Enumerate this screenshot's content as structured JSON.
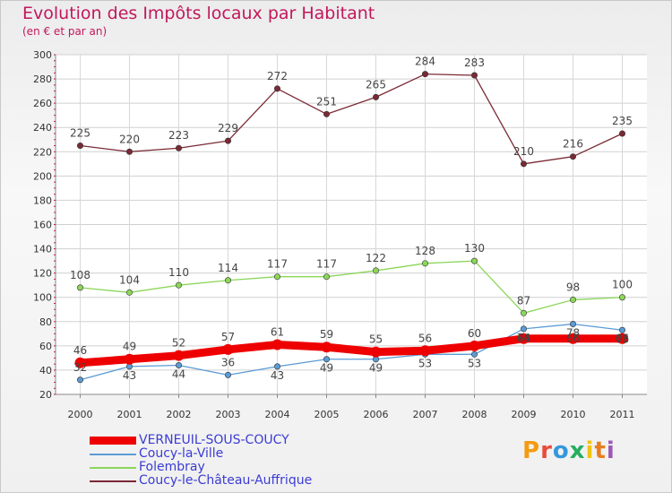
{
  "title": "Evolution des Impôts locaux par Habitant",
  "subtitle": "(en € et par an)",
  "logo": {
    "text": "Proxiti",
    "letters": [
      "P",
      "r",
      "o",
      "x",
      "i",
      "t",
      "i"
    ],
    "colors": [
      "#f39c12",
      "#e74c3c",
      "#3498db",
      "#27ae60",
      "#f1c40f",
      "#e67e22",
      "#9b59b6"
    ]
  },
  "chart_data": {
    "type": "line",
    "x": [
      "2000",
      "2001",
      "2002",
      "2003",
      "2004",
      "2005",
      "2006",
      "2007",
      "2008",
      "2009",
      "2010",
      "2011"
    ],
    "ylim": [
      20,
      300
    ],
    "yticks": [
      20,
      40,
      60,
      80,
      100,
      120,
      140,
      160,
      180,
      200,
      220,
      240,
      260,
      280,
      300
    ],
    "grid": true,
    "legend_position": "bottom-left",
    "series": [
      {
        "name": "VERNEUIL-SOUS-COUCY",
        "color": "#ee0000",
        "weight": "thick",
        "labels": true,
        "values": [
          46,
          49,
          52,
          57,
          61,
          59,
          55,
          56,
          60,
          66,
          66,
          66
        ],
        "label_text": [
          "46",
          "49",
          "52",
          "57",
          "61",
          "59",
          "55",
          "56",
          "60",
          "",
          "",
          ""
        ]
      },
      {
        "name": "Coucy-la-Ville",
        "color": "#5b9bd5",
        "weight": "thin",
        "labels": true,
        "values": [
          32,
          43,
          44,
          36,
          43,
          49,
          49,
          53,
          53,
          74,
          78,
          73
        ],
        "label_text": [
          "32",
          "43",
          "44",
          "36",
          "43",
          "49",
          "49",
          "53",
          "53",
          "74",
          "78",
          "73"
        ]
      },
      {
        "name": "Folembray",
        "color": "#8cd65a",
        "weight": "thin",
        "labels": true,
        "values": [
          108,
          104,
          110,
          114,
          117,
          117,
          122,
          128,
          130,
          87,
          98,
          100
        ],
        "label_text": [
          "108",
          "104",
          "110",
          "114",
          "117",
          "117",
          "122",
          "128",
          "130",
          "87",
          "98",
          "100"
        ]
      },
      {
        "name": "Coucy-le-Château-Auffrique",
        "color": "#7a2a35",
        "weight": "thin",
        "labels": true,
        "values": [
          225,
          220,
          223,
          229,
          272,
          251,
          265,
          284,
          283,
          210,
          216,
          235
        ],
        "label_text": [
          "225",
          "220",
          "223",
          "229",
          "272",
          "251",
          "265",
          "284",
          "283",
          "210",
          "216",
          "235"
        ]
      }
    ],
    "extra_labels": [
      "66",
      "66",
      "66"
    ]
  }
}
